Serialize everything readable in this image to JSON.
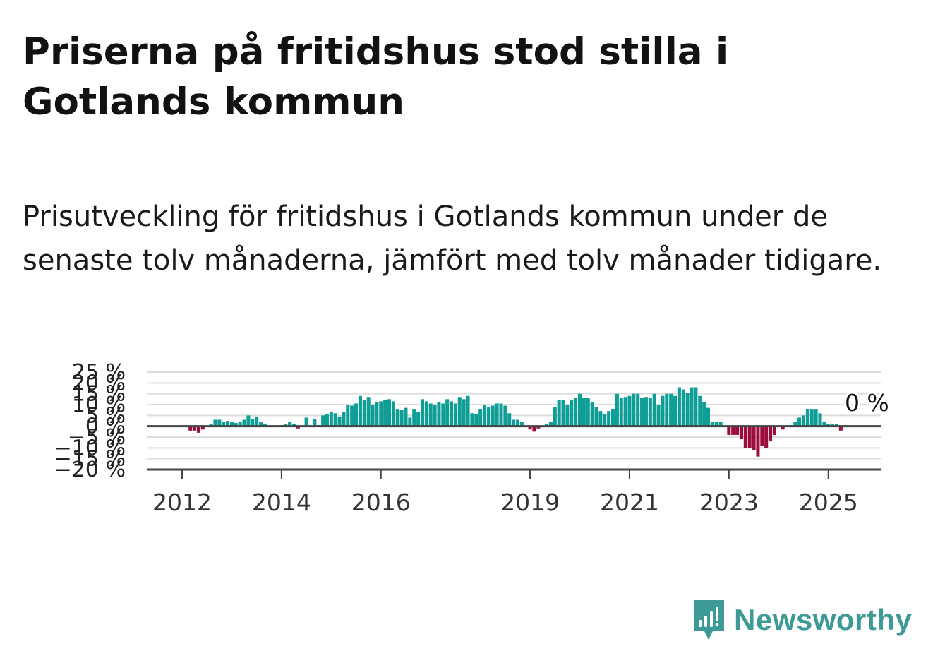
{
  "title": "Priserna på fritidshus stod stilla i Gotlands kommun",
  "subtitle": "Prisutveckling för fritidshus i Gotlands kommun under de senaste tolv månaderna, jämfört med tolv månader tidigare.",
  "brand": {
    "name": "Newsworthy",
    "icon": "newsworthy-bar-chart-logo-icon",
    "color": "#3d9a97"
  },
  "colors": {
    "positive": "#0f9e96",
    "negative": "#9b0d3f",
    "grid": "#dddddd",
    "axis": "#444444",
    "text": "#222222"
  },
  "chart_data": {
    "type": "bar",
    "title": "",
    "xlabel": "",
    "ylabel": "",
    "ylim": [
      -20,
      25
    ],
    "grid": true,
    "legend": "none",
    "y_ticks": [
      {
        "value": 25,
        "label": "25 %"
      },
      {
        "value": 20,
        "label": "20 %"
      },
      {
        "value": 15,
        "label": "15 %"
      },
      {
        "value": 10,
        "label": "10 %"
      },
      {
        "value": 5,
        "label": "5 %"
      },
      {
        "value": 0,
        "label": "0 %"
      },
      {
        "value": -5,
        "label": "−5 %"
      },
      {
        "value": -10,
        "label": "−10 %"
      },
      {
        "value": -15,
        "label": "−15 %"
      },
      {
        "value": -20,
        "label": "−20 %"
      }
    ],
    "x_ticks": [
      {
        "date": "2012-01",
        "label": "2012"
      },
      {
        "date": "2014-01",
        "label": "2014"
      },
      {
        "date": "2016-01",
        "label": "2016"
      },
      {
        "date": "2019-01",
        "label": "2019"
      },
      {
        "date": "2021-01",
        "label": "2021"
      },
      {
        "date": "2023-01",
        "label": "2023"
      },
      {
        "date": "2025-01",
        "label": "2025"
      }
    ],
    "annotation": {
      "date": "2025-07",
      "value": 0,
      "label": "0 %"
    },
    "start_month": "2012-01",
    "values": [
      0,
      0,
      -2,
      -2,
      -3,
      -1.5,
      0,
      1,
      3,
      3,
      2,
      2.5,
      2,
      1.5,
      2,
      3,
      5,
      3.5,
      4.5,
      2,
      1,
      0,
      0,
      0,
      0.5,
      1,
      2,
      1,
      -1,
      0,
      4,
      0,
      3.5,
      0.5,
      5,
      5.5,
      6.5,
      6,
      4.5,
      6.5,
      10,
      9.5,
      10.5,
      14,
      12,
      13.5,
      10,
      11,
      11.5,
      12,
      12.5,
      11.5,
      8,
      7.5,
      8.5,
      4,
      8,
      6.5,
      12.5,
      11.5,
      10.5,
      10,
      11,
      10.5,
      12.5,
      11.5,
      10.5,
      13.5,
      12.5,
      14,
      6,
      5.5,
      8,
      10,
      9,
      9.5,
      10.5,
      10.5,
      9.5,
      6,
      3,
      3,
      2,
      0,
      -1.5,
      -2.5,
      -1,
      0,
      1,
      2,
      9,
      12,
      12,
      10,
      12,
      13,
      15,
      13,
      13,
      11,
      9,
      7,
      5.5,
      7,
      8,
      15,
      13,
      13.5,
      14,
      15,
      15,
      13,
      13.5,
      13,
      15,
      10,
      14,
      15,
      15,
      14,
      18,
      17,
      15.5,
      18,
      18,
      14,
      11,
      8.5,
      2,
      2,
      2,
      0,
      -4,
      -4,
      -4,
      -6,
      -10,
      -10,
      -11,
      -14,
      -9,
      -10,
      -7,
      -4,
      0,
      -1.5,
      0,
      0.5,
      2,
      4,
      5,
      8,
      8,
      8,
      6,
      2,
      1,
      1,
      1,
      -2,
      0
    ]
  }
}
